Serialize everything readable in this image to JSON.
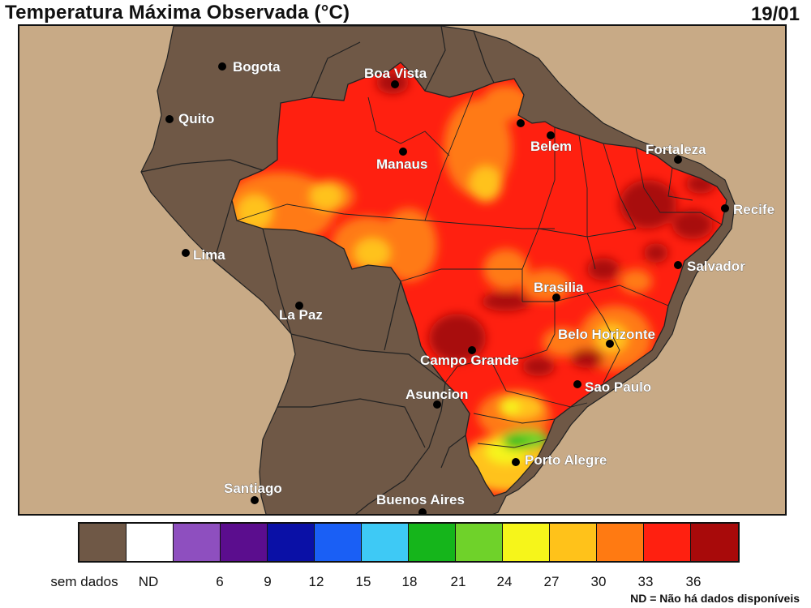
{
  "header": {
    "title": "Temperatura Máxima Observada (°C)",
    "date": "19/01"
  },
  "map": {
    "ocean_color": "#c8aa86",
    "land_color": "#6f5846",
    "cities": [
      {
        "name": "Bogota"
      },
      {
        "name": "Quito"
      },
      {
        "name": "Boa Vista"
      },
      {
        "name": "Manaus"
      },
      {
        "name": "Belem"
      },
      {
        "name": "Fortaleza"
      },
      {
        "name": "Recife"
      },
      {
        "name": "Lima"
      },
      {
        "name": "Salvador"
      },
      {
        "name": "Brasilia"
      },
      {
        "name": "La Paz"
      },
      {
        "name": "Belo Horizonte"
      },
      {
        "name": "Campo Grande"
      },
      {
        "name": "Sao Paulo"
      },
      {
        "name": "Asuncion"
      },
      {
        "name": "Porto Alegre"
      },
      {
        "name": "Santiago"
      },
      {
        "name": "Buenos Aires"
      }
    ]
  },
  "legend": {
    "colors": [
      "#6f5846",
      "#ffffff",
      "#8e4fbf",
      "#5b0d8e",
      "#0a10a6",
      "#1a5ff5",
      "#3ec9f5",
      "#15b51b",
      "#6fd22a",
      "#f6f51a",
      "#ffc21a",
      "#ff7a12",
      "#ff2010",
      "#a80a0a"
    ],
    "labels": [
      "sem dados",
      "ND",
      "6",
      "9",
      "12",
      "15",
      "18",
      "21",
      "24",
      "27",
      "30",
      "33",
      "36"
    ],
    "footnote": "ND = Não há dados disponíveis"
  }
}
